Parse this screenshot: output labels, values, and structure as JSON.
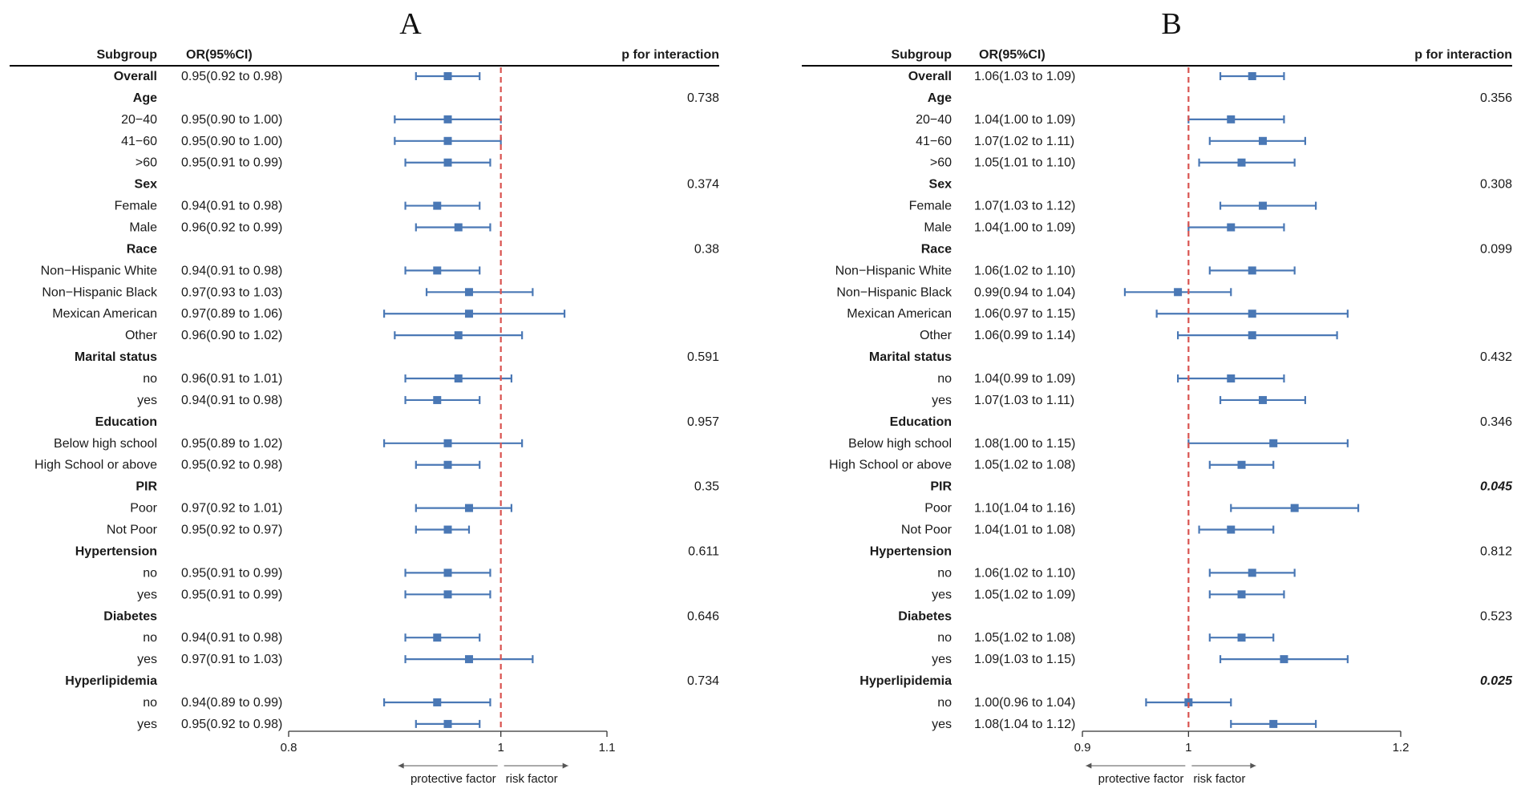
{
  "colors": {
    "accent": "#4a78b5",
    "reference_line": "#d9534f",
    "text": "#1a1a1a"
  },
  "chart_data": [
    {
      "type": "forest",
      "panel": "A",
      "headers": {
        "subgroup": "Subgroup",
        "or": "OR(95%CI)",
        "p": "p for interaction"
      },
      "xlim": [
        0.8,
        1.1
      ],
      "ticks": [
        {
          "v": 0.8,
          "label": "0.8"
        },
        {
          "v": 1,
          "label": "1"
        },
        {
          "v": 1.1,
          "label": "1.1"
        }
      ],
      "reference": 1,
      "annotations": {
        "left": "protective factor",
        "right": "risk factor"
      },
      "rows": [
        {
          "label": "Overall",
          "bold": true,
          "or_text": "0.95(0.92 to 0.98)",
          "est": 0.95,
          "lo": 0.92,
          "hi": 0.98
        },
        {
          "label": "Age",
          "bold": true,
          "p": "0.738"
        },
        {
          "label": "20−40",
          "or_text": "0.95(0.90 to 1.00)",
          "est": 0.95,
          "lo": 0.9,
          "hi": 1.0
        },
        {
          "label": "41−60",
          "or_text": "0.95(0.90 to 1.00)",
          "est": 0.95,
          "lo": 0.9,
          "hi": 1.0
        },
        {
          "label": ">60",
          "or_text": "0.95(0.91 to 0.99)",
          "est": 0.95,
          "lo": 0.91,
          "hi": 0.99
        },
        {
          "label": "Sex",
          "bold": true,
          "p": "0.374"
        },
        {
          "label": "Female",
          "or_text": "0.94(0.91 to 0.98)",
          "est": 0.94,
          "lo": 0.91,
          "hi": 0.98
        },
        {
          "label": "Male",
          "or_text": "0.96(0.92 to 0.99)",
          "est": 0.96,
          "lo": 0.92,
          "hi": 0.99
        },
        {
          "label": "Race",
          "bold": true,
          "p": "0.38"
        },
        {
          "label": "Non−Hispanic White",
          "or_text": "0.94(0.91 to 0.98)",
          "est": 0.94,
          "lo": 0.91,
          "hi": 0.98
        },
        {
          "label": "Non−Hispanic Black",
          "or_text": "0.97(0.93 to 1.03)",
          "est": 0.97,
          "lo": 0.93,
          "hi": 1.03
        },
        {
          "label": "Mexican American",
          "or_text": "0.97(0.89 to 1.06)",
          "est": 0.97,
          "lo": 0.89,
          "hi": 1.06
        },
        {
          "label": "Other",
          "or_text": "0.96(0.90 to 1.02)",
          "est": 0.96,
          "lo": 0.9,
          "hi": 1.02
        },
        {
          "label": "Marital status",
          "bold": true,
          "p": "0.591"
        },
        {
          "label": "no",
          "or_text": "0.96(0.91 to 1.01)",
          "est": 0.96,
          "lo": 0.91,
          "hi": 1.01
        },
        {
          "label": "yes",
          "or_text": "0.94(0.91 to 0.98)",
          "est": 0.94,
          "lo": 0.91,
          "hi": 0.98
        },
        {
          "label": "Education",
          "bold": true,
          "p": "0.957"
        },
        {
          "label": "Below high school",
          "or_text": "0.95(0.89 to 1.02)",
          "est": 0.95,
          "lo": 0.89,
          "hi": 1.02
        },
        {
          "label": "High School or above",
          "or_text": "0.95(0.92 to 0.98)",
          "est": 0.95,
          "lo": 0.92,
          "hi": 0.98
        },
        {
          "label": "PIR",
          "bold": true,
          "p": "0.35"
        },
        {
          "label": "Poor",
          "or_text": "0.97(0.92 to 1.01)",
          "est": 0.97,
          "lo": 0.92,
          "hi": 1.01
        },
        {
          "label": "Not Poor",
          "or_text": "0.95(0.92 to 0.97)",
          "est": 0.95,
          "lo": 0.92,
          "hi": 0.97
        },
        {
          "label": "Hypertension",
          "bold": true,
          "p": "0.611"
        },
        {
          "label": "no",
          "or_text": "0.95(0.91 to 0.99)",
          "est": 0.95,
          "lo": 0.91,
          "hi": 0.99
        },
        {
          "label": "yes",
          "or_text": "0.95(0.91 to 0.99)",
          "est": 0.95,
          "lo": 0.91,
          "hi": 0.99
        },
        {
          "label": "Diabetes",
          "bold": true,
          "p": "0.646"
        },
        {
          "label": "no",
          "or_text": "0.94(0.91 to 0.98)",
          "est": 0.94,
          "lo": 0.91,
          "hi": 0.98
        },
        {
          "label": "yes",
          "or_text": "0.97(0.91 to 1.03)",
          "est": 0.97,
          "lo": 0.91,
          "hi": 1.03
        },
        {
          "label": "Hyperlipidemia",
          "bold": true,
          "p": "0.734"
        },
        {
          "label": "no",
          "or_text": "0.94(0.89 to 0.99)",
          "est": 0.94,
          "lo": 0.89,
          "hi": 0.99
        },
        {
          "label": "yes",
          "or_text": "0.95(0.92 to 0.98)",
          "est": 0.95,
          "lo": 0.92,
          "hi": 0.98
        }
      ]
    },
    {
      "type": "forest",
      "panel": "B",
      "headers": {
        "subgroup": "Subgroup",
        "or": "OR(95%CI)",
        "p": "p for interaction"
      },
      "xlim": [
        0.9,
        1.2
      ],
      "ticks": [
        {
          "v": 0.9,
          "label": "0.9"
        },
        {
          "v": 1,
          "label": "1"
        },
        {
          "v": 1.2,
          "label": "1.2"
        }
      ],
      "reference": 1,
      "annotations": {
        "left": "protective factor",
        "right": "risk factor"
      },
      "rows": [
        {
          "label": "Overall",
          "bold": true,
          "or_text": "1.06(1.03 to 1.09)",
          "est": 1.06,
          "lo": 1.03,
          "hi": 1.09
        },
        {
          "label": "Age",
          "bold": true,
          "p": "0.356"
        },
        {
          "label": "20−40",
          "or_text": "1.04(1.00 to 1.09)",
          "est": 1.04,
          "lo": 1.0,
          "hi": 1.09
        },
        {
          "label": "41−60",
          "or_text": "1.07(1.02 to 1.11)",
          "est": 1.07,
          "lo": 1.02,
          "hi": 1.11
        },
        {
          "label": ">60",
          "or_text": "1.05(1.01 to 1.10)",
          "est": 1.05,
          "lo": 1.01,
          "hi": 1.1
        },
        {
          "label": "Sex",
          "bold": true,
          "p": "0.308"
        },
        {
          "label": "Female",
          "or_text": "1.07(1.03 to 1.12)",
          "est": 1.07,
          "lo": 1.03,
          "hi": 1.12
        },
        {
          "label": "Male",
          "or_text": "1.04(1.00 to 1.09)",
          "est": 1.04,
          "lo": 1.0,
          "hi": 1.09
        },
        {
          "label": "Race",
          "bold": true,
          "p": "0.099"
        },
        {
          "label": "Non−Hispanic White",
          "or_text": "1.06(1.02 to 1.10)",
          "est": 1.06,
          "lo": 1.02,
          "hi": 1.1
        },
        {
          "label": "Non−Hispanic Black",
          "or_text": "0.99(0.94 to 1.04)",
          "est": 0.99,
          "lo": 0.94,
          "hi": 1.04
        },
        {
          "label": "Mexican American",
          "or_text": "1.06(0.97 to 1.15)",
          "est": 1.06,
          "lo": 0.97,
          "hi": 1.15
        },
        {
          "label": "Other",
          "or_text": "1.06(0.99 to 1.14)",
          "est": 1.06,
          "lo": 0.99,
          "hi": 1.14
        },
        {
          "label": "Marital status",
          "bold": true,
          "p": "0.432"
        },
        {
          "label": "no",
          "or_text": "1.04(0.99 to 1.09)",
          "est": 1.04,
          "lo": 0.99,
          "hi": 1.09
        },
        {
          "label": "yes",
          "or_text": "1.07(1.03 to 1.11)",
          "est": 1.07,
          "lo": 1.03,
          "hi": 1.11
        },
        {
          "label": "Education",
          "bold": true,
          "p": "0.346"
        },
        {
          "label": "Below high school",
          "or_text": "1.08(1.00 to 1.15)",
          "est": 1.08,
          "lo": 1.0,
          "hi": 1.15
        },
        {
          "label": "High School or above",
          "or_text": "1.05(1.02 to 1.08)",
          "est": 1.05,
          "lo": 1.02,
          "hi": 1.08
        },
        {
          "label": "PIR",
          "bold": true,
          "p": "0.045",
          "p_significant": true
        },
        {
          "label": "Poor",
          "or_text": "1.10(1.04 to 1.16)",
          "est": 1.1,
          "lo": 1.04,
          "hi": 1.16
        },
        {
          "label": "Not Poor",
          "or_text": "1.04(1.01 to 1.08)",
          "est": 1.04,
          "lo": 1.01,
          "hi": 1.08
        },
        {
          "label": "Hypertension",
          "bold": true,
          "p": "0.812"
        },
        {
          "label": "no",
          "or_text": "1.06(1.02 to 1.10)",
          "est": 1.06,
          "lo": 1.02,
          "hi": 1.1
        },
        {
          "label": "yes",
          "or_text": "1.05(1.02 to 1.09)",
          "est": 1.05,
          "lo": 1.02,
          "hi": 1.09
        },
        {
          "label": "Diabetes",
          "bold": true,
          "p": "0.523"
        },
        {
          "label": "no",
          "or_text": "1.05(1.02 to 1.08)",
          "est": 1.05,
          "lo": 1.02,
          "hi": 1.08
        },
        {
          "label": "yes",
          "or_text": "1.09(1.03 to 1.15)",
          "est": 1.09,
          "lo": 1.03,
          "hi": 1.15
        },
        {
          "label": "Hyperlipidemia",
          "bold": true,
          "p": "0.025",
          "p_significant": true
        },
        {
          "label": "no",
          "or_text": "1.00(0.96 to 1.04)",
          "est": 1.0,
          "lo": 0.96,
          "hi": 1.04
        },
        {
          "label": "yes",
          "or_text": "1.08(1.04 to 1.12)",
          "est": 1.08,
          "lo": 1.04,
          "hi": 1.12
        }
      ]
    }
  ]
}
